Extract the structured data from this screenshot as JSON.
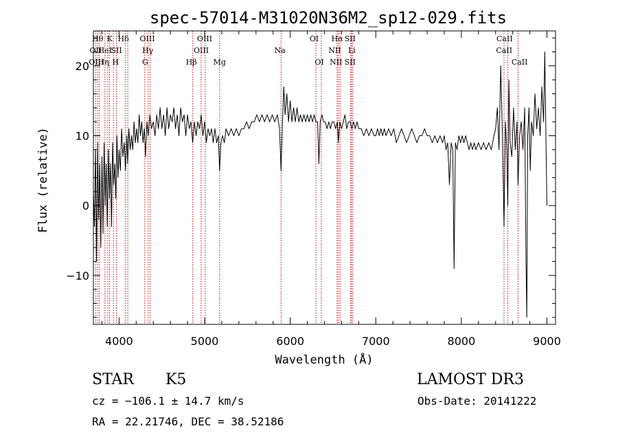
{
  "chart_data": {
    "type": "line",
    "title": "spec-57014-M31020N36M2_sp12-029.fits",
    "xlabel": "Wavelength (Å)",
    "ylabel": "Flux (relative)",
    "xlim": [
      3700,
      9100
    ],
    "ylim": [
      -17,
      25
    ],
    "x_ticks": [
      4000,
      5000,
      6000,
      7000,
      8000,
      9000
    ],
    "x_tick_labels": [
      "4000",
      "5000",
      "6000",
      "7000",
      "8000",
      "9000"
    ],
    "y_ticks": [
      -10,
      0,
      10,
      20
    ],
    "y_tick_labels": [
      "−10",
      "0",
      "10",
      "20"
    ],
    "grid": false,
    "line_color": "#000000",
    "marker_color": "#cc0000",
    "spectrum_points": [
      [
        3700,
        2
      ],
      [
        3712,
        -3
      ],
      [
        3725,
        8
      ],
      [
        3737,
        -8
      ],
      [
        3750,
        9
      ],
      [
        3762,
        -2
      ],
      [
        3775,
        6
      ],
      [
        3787,
        -6
      ],
      [
        3800,
        7
      ],
      [
        3812,
        -4
      ],
      [
        3825,
        9
      ],
      [
        3837,
        0
      ],
      [
        3850,
        6
      ],
      [
        3862,
        -3
      ],
      [
        3875,
        8
      ],
      [
        3887,
        1
      ],
      [
        3900,
        6
      ],
      [
        3912,
        -3
      ],
      [
        3925,
        9
      ],
      [
        3937,
        3
      ],
      [
        3950,
        6
      ],
      [
        3962,
        1
      ],
      [
        3975,
        10
      ],
      [
        3987,
        4
      ],
      [
        4000,
        8
      ],
      [
        4015,
        5
      ],
      [
        4030,
        11
      ],
      [
        4045,
        7
      ],
      [
        4060,
        9
      ],
      [
        4075,
        5
      ],
      [
        4090,
        10
      ],
      [
        4100,
        6
      ],
      [
        4115,
        11
      ],
      [
        4130,
        8
      ],
      [
        4145,
        10
      ],
      [
        4160,
        8
      ],
      [
        4175,
        12
      ],
      [
        4190,
        9
      ],
      [
        4205,
        11
      ],
      [
        4220,
        9
      ],
      [
        4235,
        13
      ],
      [
        4250,
        10
      ],
      [
        4265,
        12
      ],
      [
        4280,
        9
      ],
      [
        4295,
        11
      ],
      [
        4310,
        7
      ],
      [
        4325,
        12
      ],
      [
        4340,
        10
      ],
      [
        4360,
        13
      ],
      [
        4380,
        11
      ],
      [
        4400,
        12
      ],
      [
        4420,
        10
      ],
      [
        4440,
        13
      ],
      [
        4460,
        11
      ],
      [
        4480,
        14
      ],
      [
        4500,
        11
      ],
      [
        4520,
        13
      ],
      [
        4540,
        10
      ],
      [
        4560,
        14
      ],
      [
        4580,
        11
      ],
      [
        4600,
        13
      ],
      [
        4620,
        12
      ],
      [
        4640,
        14
      ],
      [
        4660,
        11
      ],
      [
        4680,
        13
      ],
      [
        4700,
        10
      ],
      [
        4720,
        14
      ],
      [
        4740,
        12
      ],
      [
        4760,
        13
      ],
      [
        4780,
        10
      ],
      [
        4800,
        13
      ],
      [
        4820,
        11
      ],
      [
        4840,
        12
      ],
      [
        4860,
        9
      ],
      [
        4880,
        12
      ],
      [
        4900,
        10
      ],
      [
        4920,
        12
      ],
      [
        4940,
        11
      ],
      [
        4960,
        13
      ],
      [
        4980,
        10
      ],
      [
        5000,
        12
      ],
      [
        5020,
        9
      ],
      [
        5040,
        11
      ],
      [
        5060,
        10
      ],
      [
        5080,
        11
      ],
      [
        5100,
        9
      ],
      [
        5120,
        11
      ],
      [
        5140,
        9
      ],
      [
        5160,
        10
      ],
      [
        5175,
        5
      ],
      [
        5190,
        9
      ],
      [
        5210,
        10
      ],
      [
        5230,
        9
      ],
      [
        5250,
        11
      ],
      [
        5280,
        10
      ],
      [
        5310,
        11
      ],
      [
        5340,
        10
      ],
      [
        5370,
        11
      ],
      [
        5400,
        10
      ],
      [
        5430,
        11
      ],
      [
        5460,
        11
      ],
      [
        5490,
        12
      ],
      [
        5520,
        11
      ],
      [
        5550,
        12
      ],
      [
        5580,
        12
      ],
      [
        5610,
        13
      ],
      [
        5640,
        12
      ],
      [
        5670,
        13
      ],
      [
        5700,
        12
      ],
      [
        5730,
        13
      ],
      [
        5760,
        12
      ],
      [
        5790,
        13
      ],
      [
        5820,
        12
      ],
      [
        5850,
        13
      ],
      [
        5875,
        11
      ],
      [
        5893,
        5
      ],
      [
        5910,
        12
      ],
      [
        5925,
        17
      ],
      [
        5940,
        13
      ],
      [
        5960,
        16
      ],
      [
        5980,
        12
      ],
      [
        6000,
        15
      ],
      [
        6020,
        12
      ],
      [
        6040,
        14
      ],
      [
        6060,
        12
      ],
      [
        6080,
        14
      ],
      [
        6100,
        12
      ],
      [
        6120,
        13
      ],
      [
        6140,
        12
      ],
      [
        6160,
        13
      ],
      [
        6180,
        12
      ],
      [
        6200,
        13
      ],
      [
        6220,
        12
      ],
      [
        6240,
        13
      ],
      [
        6260,
        12
      ],
      [
        6280,
        13
      ],
      [
        6300,
        12
      ],
      [
        6320,
        12
      ],
      [
        6335,
        6
      ],
      [
        6350,
        12
      ],
      [
        6370,
        13
      ],
      [
        6390,
        12
      ],
      [
        6410,
        12
      ],
      [
        6430,
        11
      ],
      [
        6450,
        12
      ],
      [
        6470,
        11
      ],
      [
        6490,
        12
      ],
      [
        6510,
        12
      ],
      [
        6530,
        11
      ],
      [
        6550,
        12
      ],
      [
        6563,
        9
      ],
      [
        6580,
        12
      ],
      [
        6600,
        11
      ],
      [
        6620,
        12
      ],
      [
        6640,
        13
      ],
      [
        6660,
        11
      ],
      [
        6680,
        12
      ],
      [
        6700,
        12
      ],
      [
        6720,
        11
      ],
      [
        6740,
        12
      ],
      [
        6760,
        11
      ],
      [
        6780,
        12
      ],
      [
        6800,
        11
      ],
      [
        6830,
        11
      ],
      [
        6860,
        10
      ],
      [
        6890,
        11
      ],
      [
        6920,
        10
      ],
      [
        6950,
        11
      ],
      [
        6980,
        10
      ],
      [
        7000,
        10
      ],
      [
        7020,
        11
      ],
      [
        7040,
        10
      ],
      [
        7060,
        11
      ],
      [
        7080,
        10
      ],
      [
        7100,
        11
      ],
      [
        7120,
        10
      ],
      [
        7150,
        11
      ],
      [
        7180,
        10
      ],
      [
        7210,
        11
      ],
      [
        7240,
        9
      ],
      [
        7270,
        10
      ],
      [
        7300,
        11
      ],
      [
        7330,
        10
      ],
      [
        7360,
        9
      ],
      [
        7390,
        10
      ],
      [
        7420,
        11
      ],
      [
        7450,
        10
      ],
      [
        7480,
        9
      ],
      [
        7510,
        10
      ],
      [
        7540,
        10
      ],
      [
        7570,
        11
      ],
      [
        7600,
        10
      ],
      [
        7630,
        10
      ],
      [
        7660,
        9
      ],
      [
        7690,
        10
      ],
      [
        7720,
        9
      ],
      [
        7750,
        10
      ],
      [
        7780,
        9
      ],
      [
        7800,
        10
      ],
      [
        7820,
        8
      ],
      [
        7840,
        9
      ],
      [
        7860,
        3
      ],
      [
        7880,
        9
      ],
      [
        7900,
        8
      ],
      [
        7915,
        -9
      ],
      [
        7930,
        9
      ],
      [
        7950,
        8
      ],
      [
        7970,
        10
      ],
      [
        7990,
        9
      ],
      [
        8010,
        10
      ],
      [
        8030,
        9
      ],
      [
        8050,
        10
      ],
      [
        8070,
        9
      ],
      [
        8090,
        8
      ],
      [
        8110,
        9
      ],
      [
        8130,
        8
      ],
      [
        8150,
        9
      ],
      [
        8170,
        8
      ],
      [
        8200,
        9
      ],
      [
        8230,
        8
      ],
      [
        8260,
        9
      ],
      [
        8290,
        8
      ],
      [
        8320,
        9
      ],
      [
        8350,
        8
      ],
      [
        8380,
        10
      ],
      [
        8400,
        11
      ],
      [
        8420,
        14
      ],
      [
        8440,
        8
      ],
      [
        8460,
        20
      ],
      [
        8480,
        10
      ],
      [
        8498,
        -3
      ],
      [
        8515,
        12
      ],
      [
        8530,
        8
      ],
      [
        8542,
        0
      ],
      [
        8555,
        18
      ],
      [
        8570,
        9
      ],
      [
        8590,
        7
      ],
      [
        8610,
        14
      ],
      [
        8630,
        8
      ],
      [
        8650,
        12
      ],
      [
        8662,
        3
      ],
      [
        8680,
        10
      ],
      [
        8700,
        12
      ],
      [
        8720,
        8
      ],
      [
        8740,
        14
      ],
      [
        8755,
        -8
      ],
      [
        8765,
        -16
      ],
      [
        8775,
        10
      ],
      [
        8790,
        14
      ],
      [
        8805,
        5
      ],
      [
        8820,
        12
      ],
      [
        8840,
        10
      ],
      [
        8860,
        16
      ],
      [
        8880,
        11
      ],
      [
        8900,
        14
      ],
      [
        8920,
        10
      ],
      [
        8940,
        17
      ],
      [
        8960,
        12
      ],
      [
        8975,
        22
      ],
      [
        8990,
        8
      ],
      [
        9000,
        0
      ]
    ],
    "line_markers": [
      {
        "wl": 3727,
        "row": 1,
        "label": "OII",
        "label_wl": 3727
      },
      {
        "wl": 3750,
        "row": 0,
        "label": "Hθ",
        "label_wl": 3750
      },
      {
        "wl": 3770,
        "row": 2,
        "label": "OIII",
        "label_wl": 3735
      },
      {
        "wl": 3835,
        "row": 2,
        "label": "Hη",
        "label_wl": 3818
      },
      {
        "wl": 3868,
        "row": 1,
        "label": "HeI",
        "label_wl": 3835
      },
      {
        "wl": 3889,
        "row": 1,
        "label": "",
        "label_wl": 3889
      },
      {
        "wl": 3934,
        "row": 0,
        "label": "K",
        "label_wl": 3890
      },
      {
        "wl": 3969,
        "row": 2,
        "label": "H",
        "label_wl": 3960
      },
      {
        "wl": 4072,
        "row": 1,
        "label": "SII",
        "label_wl": 3970
      },
      {
        "wl": 4102,
        "row": 0,
        "label": "Hδ",
        "label_wl": 4050
      },
      {
        "wl": 4300,
        "row": 2,
        "label": "G",
        "label_wl": 4305
      },
      {
        "wl": 4340,
        "row": 1,
        "label": "Hγ",
        "label_wl": 4335
      },
      {
        "wl": 4363,
        "row": 0,
        "label": "OIII",
        "label_wl": 4330
      },
      {
        "wl": 4861,
        "row": 2,
        "label": "Hβ",
        "label_wl": 4845
      },
      {
        "wl": 4959,
        "row": 1,
        "label": "OIII",
        "label_wl": 4960
      },
      {
        "wl": 5007,
        "row": 0,
        "label": "OIII",
        "label_wl": 5000
      },
      {
        "wl": 5175,
        "row": 2,
        "label": "Mg",
        "label_wl": 5175
      },
      {
        "wl": 5893,
        "row": 1,
        "label": "Na",
        "label_wl": 5880
      },
      {
        "wl": 6300,
        "row": 0,
        "label": "OI",
        "label_wl": 6280
      },
      {
        "wl": 6363,
        "row": 2,
        "label": "OI",
        "label_wl": 6340
      },
      {
        "wl": 6548,
        "row": 1,
        "label": "NII",
        "label_wl": 6520
      },
      {
        "wl": 6563,
        "row": 0,
        "label": "Hα",
        "label_wl": 6550
      },
      {
        "wl": 6583,
        "row": 2,
        "label": "NII",
        "label_wl": 6535
      },
      {
        "wl": 6707,
        "row": 1,
        "label": "Li",
        "label_wl": 6720
      },
      {
        "wl": 6716,
        "row": 0,
        "label": "SII",
        "label_wl": 6700
      },
      {
        "wl": 6731,
        "row": 2,
        "label": "SII",
        "label_wl": 6700
      },
      {
        "wl": 8498,
        "row": 0,
        "label": "CaII",
        "label_wl": 8505
      },
      {
        "wl": 8542,
        "row": 1,
        "label": "CaII",
        "label_wl": 8500
      },
      {
        "wl": 8662,
        "row": 2,
        "label": "CaII",
        "label_wl": 8680
      }
    ]
  },
  "info": {
    "object_class": "STAR",
    "subclass": "K5",
    "survey": "LAMOST DR3",
    "redshift_line": "cz = −106.1 ± 14.7 km/s",
    "obs_date_line": "Obs-Date: 20141222",
    "coord_line": "RA =  22.21746, DEC =  38.52186"
  }
}
